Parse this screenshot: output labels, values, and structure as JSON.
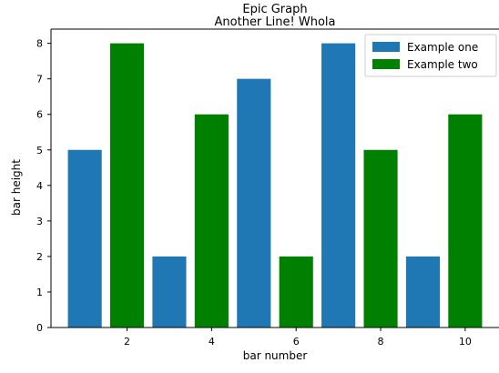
{
  "chart_data": {
    "type": "bar",
    "title": "Epic Graph",
    "subtitle": "Another Line! Whola",
    "xlabel": "bar number",
    "ylabel": "bar height",
    "xlim": [
      0.2,
      10.8
    ],
    "ylim": [
      0,
      8.4
    ],
    "xticks": [
      2,
      4,
      6,
      8,
      10
    ],
    "yticks": [
      0,
      1,
      2,
      3,
      4,
      5,
      6,
      7,
      8
    ],
    "grid": false,
    "legend_position": "top-right",
    "series": [
      {
        "name": "Example one",
        "color": "#1f77b4",
        "x": [
          1,
          3,
          5,
          7,
          9
        ],
        "values": [
          5,
          2,
          7,
          8,
          2
        ]
      },
      {
        "name": "Example two",
        "color": "#008000",
        "x": [
          2,
          4,
          6,
          8,
          10
        ],
        "values": [
          8,
          6,
          2,
          5,
          6
        ]
      }
    ]
  }
}
